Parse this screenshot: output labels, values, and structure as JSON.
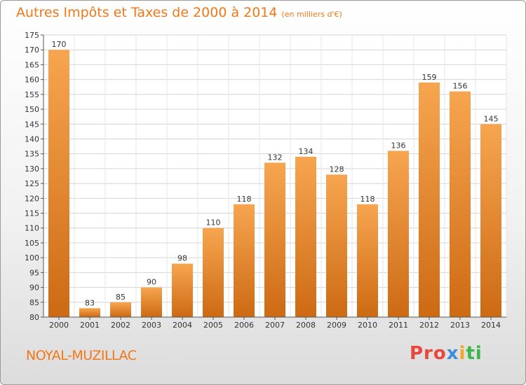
{
  "header": {
    "title": "Autres Impôts et Taxes de 2000 à 2014",
    "subtitle": "(en milliers d'€)"
  },
  "footer": {
    "commune": "NOYAL-MUZILLAC",
    "logo_parts": [
      "Pro",
      "x",
      "i",
      "ti"
    ]
  },
  "colors": {
    "accent": "#f07818",
    "bar_light": "#f7a550",
    "bar_dark": "#cd6a14"
  },
  "chart_data": {
    "type": "bar",
    "categories": [
      "2000",
      "2001",
      "2002",
      "2003",
      "2004",
      "2005",
      "2006",
      "2007",
      "2008",
      "2009",
      "2010",
      "2011",
      "2012",
      "2013",
      "2014"
    ],
    "values": [
      170,
      83,
      85,
      90,
      98,
      110,
      118,
      132,
      134,
      128,
      118,
      136,
      159,
      156,
      145
    ],
    "title": "Autres Impôts et Taxes de 2000 à 2014",
    "subtitle": "(en milliers d'€)",
    "xlabel": "",
    "ylabel": "",
    "ylim": [
      80,
      175
    ],
    "yticks": [
      80,
      85,
      90,
      95,
      100,
      105,
      110,
      115,
      120,
      125,
      130,
      135,
      140,
      145,
      150,
      155,
      160,
      165,
      170,
      175
    ],
    "grid": true,
    "data_labels": true
  }
}
